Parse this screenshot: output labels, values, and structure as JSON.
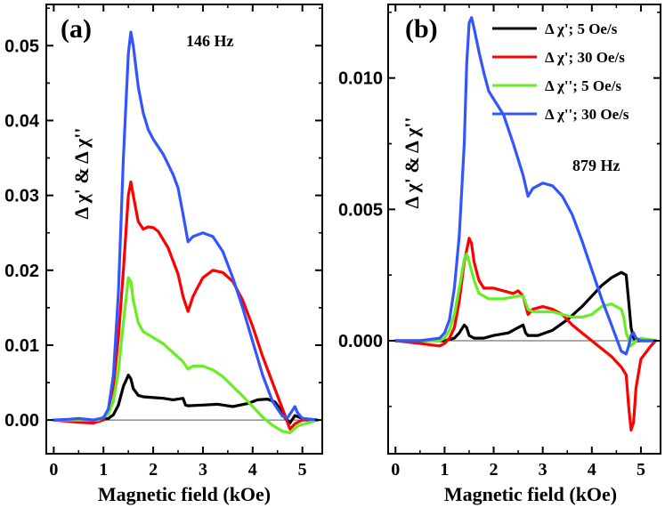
{
  "chart_data": [
    {
      "panel": "(a)",
      "type": "line",
      "annotation": "146 Hz",
      "xlabel": "Magnetic field (kOe)",
      "ylabel": "Δ χ' & Δ χ''",
      "xlim": [
        -0.15,
        5.4
      ],
      "ylim": [
        -0.0045,
        0.0555
      ],
      "xticks": [
        0,
        1,
        2,
        3,
        4,
        5
      ],
      "yticks": [
        0.0,
        0.01,
        0.02,
        0.03,
        0.04,
        0.05
      ],
      "ytick_labels": [
        "0.00",
        "0.01",
        "0.02",
        "0.03",
        "0.04",
        "0.05"
      ],
      "zero_line": true,
      "series": [
        {
          "name": "Δ χ'; 5 Oe/s",
          "color": "#000000",
          "x": [
            0,
            0.5,
            0.9,
            1.1,
            1.2,
            1.3,
            1.4,
            1.5,
            1.55,
            1.6,
            1.7,
            1.8,
            2.0,
            2.2,
            2.4,
            2.5,
            2.6,
            2.65,
            2.7,
            3.0,
            3.3,
            3.6,
            3.9,
            4.1,
            4.3,
            4.45,
            4.55,
            4.65,
            4.75,
            4.85,
            5.0,
            5.3
          ],
          "y": [
            0,
            0,
            0,
            0.0002,
            0.0007,
            0.002,
            0.0045,
            0.006,
            0.0055,
            0.0042,
            0.0033,
            0.0031,
            0.003,
            0.0029,
            0.0027,
            0.0028,
            0.0029,
            0.002,
            0.0019,
            0.002,
            0.0021,
            0.0018,
            0.0022,
            0.0027,
            0.0028,
            0.0024,
            0.0015,
            0.0003,
            -0.0004,
            0.0006,
            0.0002,
            0
          ]
        },
        {
          "name": "Δ χ'; 30 Oe/s",
          "color": "#ff0000",
          "x": [
            0,
            0.5,
            0.8,
            1.0,
            1.1,
            1.2,
            1.3,
            1.4,
            1.5,
            1.55,
            1.6,
            1.7,
            1.8,
            1.9,
            2.0,
            2.1,
            2.3,
            2.5,
            2.6,
            2.7,
            2.8,
            2.9,
            3.0,
            3.2,
            3.4,
            3.6,
            3.8,
            4.0,
            4.2,
            4.4,
            4.6,
            4.75,
            4.85,
            5.0,
            5.3
          ],
          "y": [
            0,
            -0.0003,
            -0.0004,
            0,
            0.0015,
            0.0045,
            0.011,
            0.02,
            0.03,
            0.0318,
            0.03,
            0.0265,
            0.0255,
            0.0258,
            0.0257,
            0.0252,
            0.023,
            0.0195,
            0.0165,
            0.0145,
            0.0165,
            0.0178,
            0.019,
            0.02,
            0.0197,
            0.0185,
            0.016,
            0.0125,
            0.0085,
            0.005,
            0.0015,
            -0.0012,
            -0.0005,
            0,
            0
          ]
        },
        {
          "name": "Δ χ''; 5 Oe/s",
          "color": "#66ee22",
          "x": [
            0,
            0.5,
            0.9,
            1.1,
            1.2,
            1.3,
            1.4,
            1.5,
            1.55,
            1.6,
            1.7,
            1.8,
            2.0,
            2.2,
            2.4,
            2.6,
            2.7,
            2.8,
            3.0,
            3.2,
            3.4,
            3.6,
            3.8,
            4.0,
            4.2,
            4.4,
            4.6,
            4.75,
            4.9,
            5.3
          ],
          "y": [
            0,
            0,
            0,
            0.0008,
            0.0025,
            0.0065,
            0.013,
            0.019,
            0.0185,
            0.016,
            0.013,
            0.0118,
            0.011,
            0.0102,
            0.009,
            0.0078,
            0.0068,
            0.0072,
            0.0072,
            0.0067,
            0.0058,
            0.0045,
            0.0032,
            0.0018,
            0.0004,
            -0.0007,
            -0.0015,
            -0.0017,
            -0.0008,
            0
          ]
        },
        {
          "name": "Δ χ''; 30 Oe/s",
          "color": "#3355ff",
          "x": [
            0,
            0.3,
            0.5,
            0.8,
            1.0,
            1.1,
            1.2,
            1.3,
            1.4,
            1.5,
            1.55,
            1.6,
            1.7,
            1.8,
            1.9,
            2.0,
            2.2,
            2.4,
            2.5,
            2.6,
            2.7,
            2.8,
            3.0,
            3.2,
            3.4,
            3.6,
            3.8,
            4.0,
            4.2,
            4.4,
            4.6,
            4.7,
            4.8,
            4.85,
            4.9,
            5.0,
            5.3
          ],
          "y": [
            0,
            0.0001,
            0.0002,
            0,
            0.0003,
            0.0015,
            0.006,
            0.017,
            0.035,
            0.049,
            0.0518,
            0.05,
            0.0445,
            0.041,
            0.0388,
            0.0375,
            0.0355,
            0.0328,
            0.031,
            0.0275,
            0.0238,
            0.0245,
            0.025,
            0.0245,
            0.0225,
            0.019,
            0.015,
            0.0105,
            0.006,
            0.0025,
            0.0005,
            0.0003,
            0.0013,
            0.0018,
            0.001,
            0.0002,
            0
          ]
        }
      ]
    },
    {
      "panel": "(b)",
      "type": "line",
      "annotation": "879 Hz",
      "xlabel": "Magnetic field (kOe)",
      "ylabel": "Δ χ' & Δ χ''",
      "xlim": [
        -0.15,
        5.4
      ],
      "ylim": [
        -0.0043,
        0.0128
      ],
      "xticks": [
        0,
        1,
        2,
        3,
        4,
        5
      ],
      "yticks": [
        0.0,
        0.005,
        0.01
      ],
      "ytick_labels": [
        "0.000",
        "0.005",
        "0.010"
      ],
      "zero_line": true,
      "series": [
        {
          "name": "Δ χ'; 5 Oe/s",
          "color": "#000000",
          "x": [
            0,
            0.5,
            1.0,
            1.2,
            1.3,
            1.4,
            1.45,
            1.5,
            1.6,
            1.8,
            2.0,
            2.3,
            2.5,
            2.6,
            2.65,
            2.7,
            2.9,
            3.2,
            3.5,
            3.8,
            4.0,
            4.2,
            4.4,
            4.6,
            4.7,
            4.75,
            4.8,
            4.85,
            4.9,
            5.0,
            5.3
          ],
          "y": [
            0,
            0,
            0,
            0.0001,
            0.0003,
            0.0006,
            0.0005,
            0.0002,
            0.0001,
            0.0001,
            0.0002,
            0.0003,
            0.0005,
            0.0006,
            0.0003,
            0.0002,
            0.0002,
            0.0004,
            0.0008,
            0.0013,
            0.0017,
            0.0021,
            0.0024,
            0.0026,
            0.0025,
            0.0015,
            0.0005,
            0.0001,
            0,
            0,
            0
          ]
        },
        {
          "name": "Δ χ'; 30 Oe/s",
          "color": "#ff0000",
          "x": [
            0,
            0.5,
            0.9,
            1.0,
            1.1,
            1.2,
            1.3,
            1.4,
            1.5,
            1.55,
            1.6,
            1.7,
            1.8,
            2.0,
            2.2,
            2.4,
            2.5,
            2.6,
            2.7,
            2.8,
            3.0,
            3.2,
            3.4,
            3.6,
            3.8,
            4.0,
            4.2,
            4.4,
            4.6,
            4.7,
            4.75,
            4.8,
            4.85,
            4.9,
            5.0,
            5.2,
            5.3
          ],
          "y": [
            0,
            -0.0001,
            -0.0002,
            -0.0001,
            0.0001,
            0.0005,
            0.0015,
            0.003,
            0.0039,
            0.0037,
            0.003,
            0.0023,
            0.002,
            0.002,
            0.0019,
            0.0018,
            0.0019,
            0.0017,
            0.001,
            0.0012,
            0.0013,
            0.0012,
            0.001,
            0.0006,
            0.0003,
            0,
            -0.0003,
            -0.0006,
            -0.001,
            -0.0013,
            -0.0025,
            -0.0034,
            -0.0031,
            -0.0018,
            -0.0007,
            -0.0002,
            0
          ]
        },
        {
          "name": "Δ χ''; 5 Oe/s",
          "color": "#66ee22",
          "x": [
            0,
            0.5,
            0.9,
            1.0,
            1.1,
            1.2,
            1.3,
            1.4,
            1.45,
            1.5,
            1.6,
            1.7,
            1.9,
            2.2,
            2.5,
            2.6,
            2.7,
            2.8,
            3.0,
            3.2,
            3.4,
            3.6,
            3.8,
            4.0,
            4.2,
            4.4,
            4.6,
            4.65,
            4.7,
            4.8,
            4.9,
            5.0,
            5.3
          ],
          "y": [
            0,
            0,
            0,
            0.0001,
            0.0004,
            0.001,
            0.002,
            0.0031,
            0.0033,
            0.003,
            0.0023,
            0.0018,
            0.0016,
            0.0016,
            0.0017,
            0.0017,
            0.0012,
            0.0011,
            0.0011,
            0.0011,
            0.001,
            0.0009,
            0.0009,
            0.001,
            0.0013,
            0.0014,
            0.0012,
            0.0009,
            0.0003,
            -0.0002,
            0,
            0.0001,
            0
          ]
        },
        {
          "name": "Δ χ''; 30 Oe/s",
          "color": "#3355ff",
          "x": [
            0,
            0.5,
            0.9,
            1.0,
            1.1,
            1.2,
            1.3,
            1.4,
            1.45,
            1.5,
            1.55,
            1.6,
            1.7,
            1.8,
            1.9,
            2.0,
            2.2,
            2.4,
            2.6,
            2.7,
            2.8,
            3.0,
            3.2,
            3.4,
            3.6,
            3.8,
            4.0,
            4.2,
            4.4,
            4.6,
            4.7,
            4.75,
            4.8,
            4.85,
            4.9,
            5.0,
            5.3
          ],
          "y": [
            0,
            0,
            0.0001,
            0.0003,
            0.0008,
            0.002,
            0.004,
            0.0075,
            0.0105,
            0.0121,
            0.0123,
            0.0119,
            0.011,
            0.0102,
            0.0095,
            0.0092,
            0.0086,
            0.0075,
            0.0063,
            0.0055,
            0.0058,
            0.006,
            0.0059,
            0.0055,
            0.0048,
            0.0038,
            0.0027,
            0.0016,
            0.0006,
            -0.0004,
            -0.0005,
            -0.0002,
            0.0002,
            0.0003,
            0.0001,
            0,
            0
          ]
        }
      ]
    }
  ],
  "legend": {
    "entries": [
      {
        "label": "Δ χ'; 5 Oe/s",
        "color": "#000000"
      },
      {
        "label": "Δ χ'; 30 Oe/s",
        "color": "#ff0000"
      },
      {
        "label": "Δ χ''; 5 Oe/s",
        "color": "#66ee22"
      },
      {
        "label": "Δ χ''; 30 Oe/s",
        "color": "#3355ff"
      }
    ]
  }
}
